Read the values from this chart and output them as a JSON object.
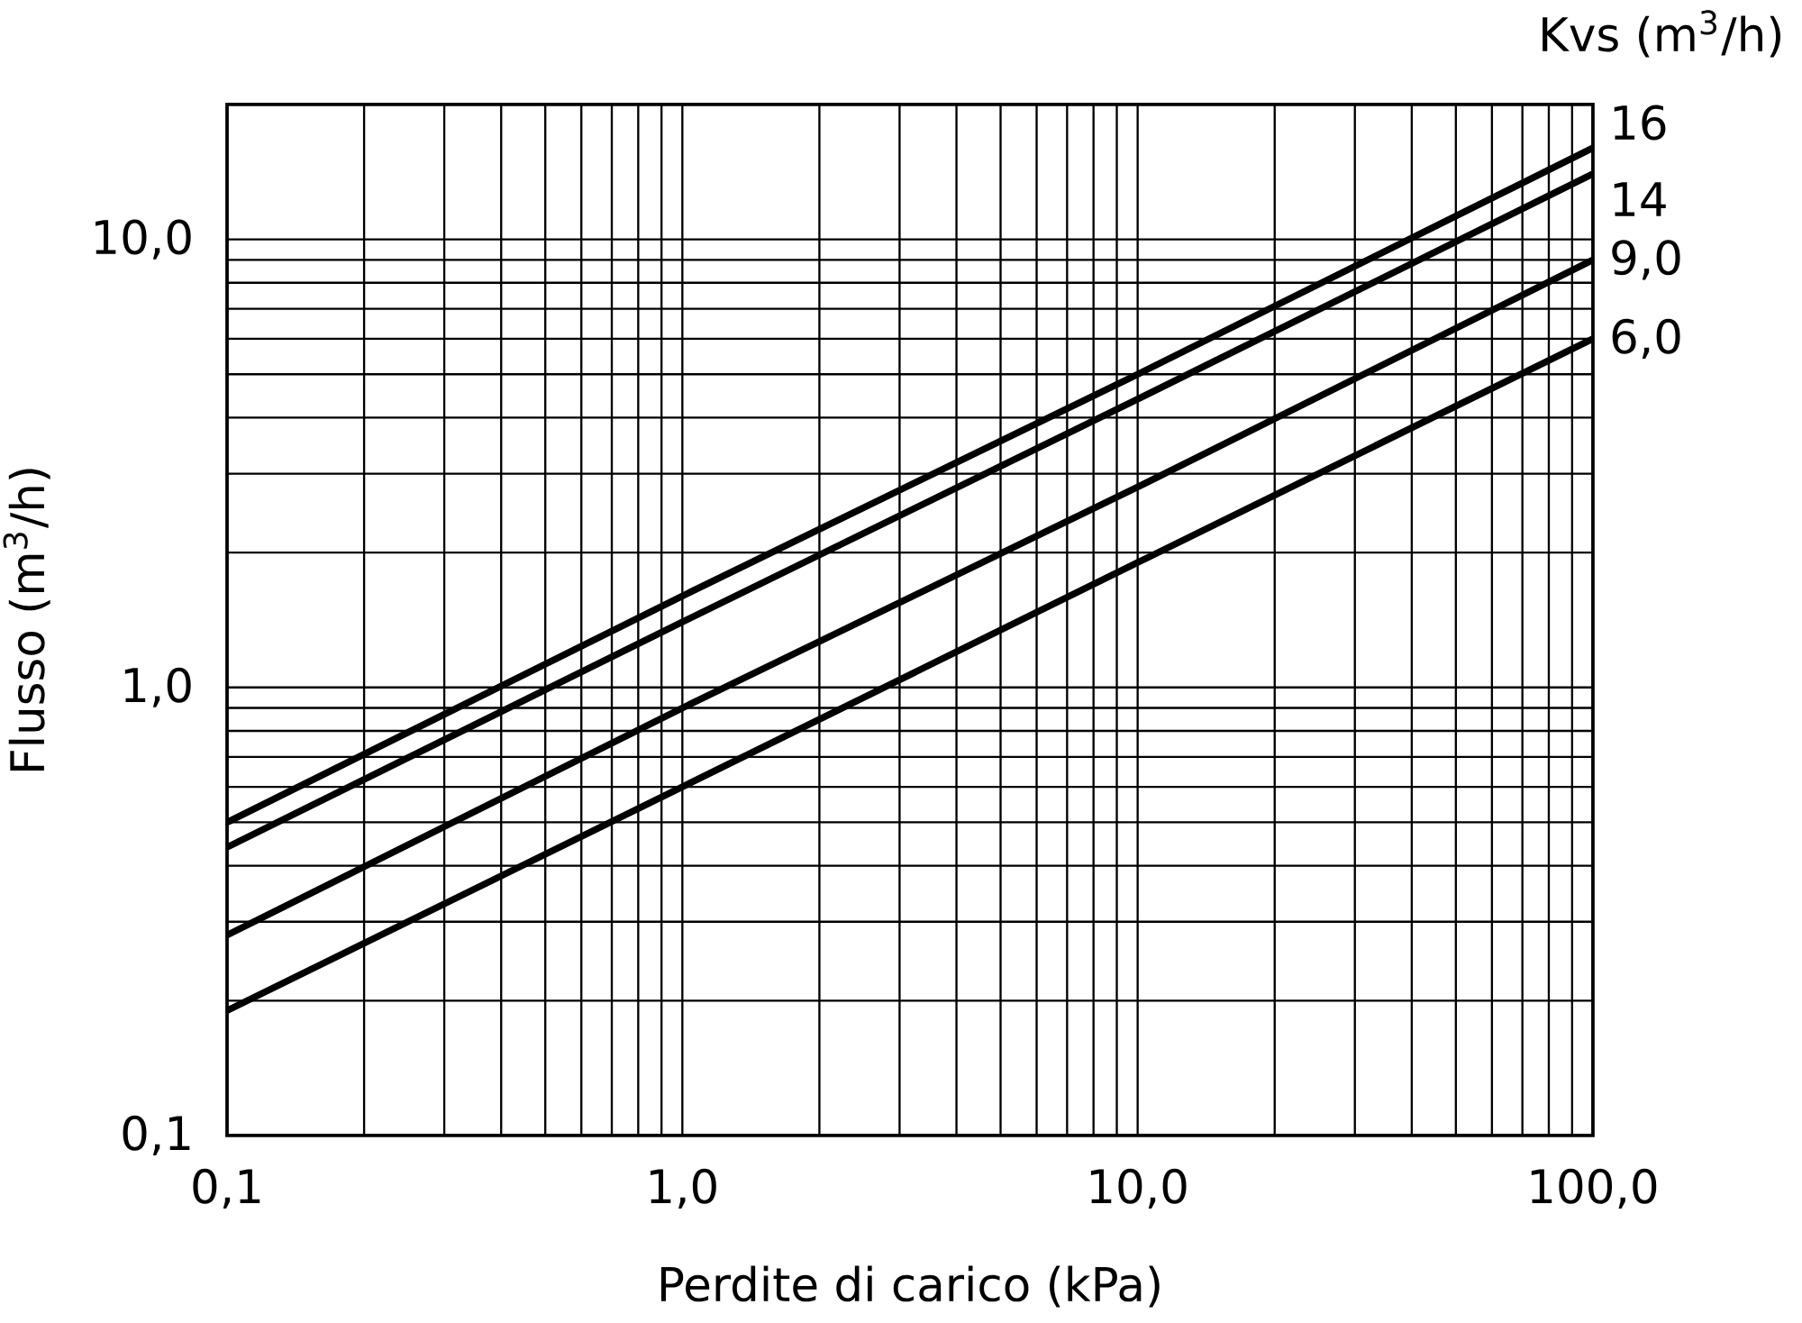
{
  "chart_data": {
    "type": "line",
    "xlabel": "Perdite di carico (kPa)",
    "ylabel": "Flusso (m$^{3}$/h)",
    "legend_title": "Kvs (m$^{3}$/h)",
    "x": [
      0.1,
      1,
      10,
      100
    ],
    "series": [
      {
        "name": "16",
        "color": "#000000",
        "values": [
          0.5,
          1.6,
          5.0,
          16
        ]
      },
      {
        "name": "14",
        "color": "#000000",
        "values": [
          0.44,
          1.4,
          4.4,
          14
        ]
      },
      {
        "name": "9,0",
        "color": "#000000",
        "values": [
          0.28,
          0.9,
          2.8,
          9
        ]
      },
      {
        "name": "6,0",
        "color": "#000000",
        "values": [
          0.19,
          0.6,
          1.9,
          6
        ]
      }
    ],
    "log": "xy",
    "grid": true,
    "xlim": [
      0.1,
      100
    ],
    "ylim": [
      0.1,
      20
    ],
    "xticks": [
      {
        "value": 0.1,
        "label": "0,1"
      },
      {
        "value": 1,
        "label": "1,0"
      },
      {
        "value": 10,
        "label": "10,0"
      },
      {
        "value": 100,
        "label": "100,0"
      }
    ],
    "yticks": [
      {
        "value": 0.1,
        "label": "0,1"
      },
      {
        "value": 1,
        "label": "1,0"
      },
      {
        "value": 10,
        "label": "10,0"
      }
    ]
  }
}
